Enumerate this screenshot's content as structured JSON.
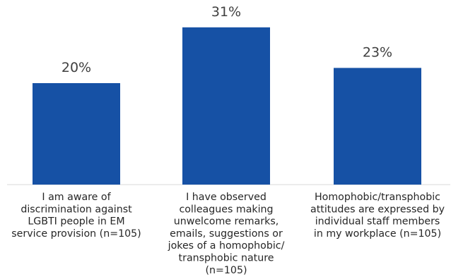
{
  "chart_data": {
    "type": "bar",
    "categories": [
      [
        "I am aware of",
        "discrimination against",
        "LGBTI people in EM",
        "service provision (n=105)"
      ],
      [
        "I have observed",
        "colleagues making",
        "unwelcome remarks,",
        "emails, suggestions or",
        "jokes of a homophobic/",
        "transphobic nature",
        "(n=105)"
      ],
      [
        "Homophobic/transphobic",
        "attitudes are expressed by",
        "individual staff members",
        "in my workplace (n=105)"
      ]
    ],
    "values": [
      20,
      31,
      23
    ],
    "value_labels": [
      "20%",
      "31%",
      "23%"
    ],
    "ylim": [
      0,
      35
    ],
    "grid": false,
    "bar_color": "#1651a5",
    "axis_color": "#d9d9d9"
  }
}
